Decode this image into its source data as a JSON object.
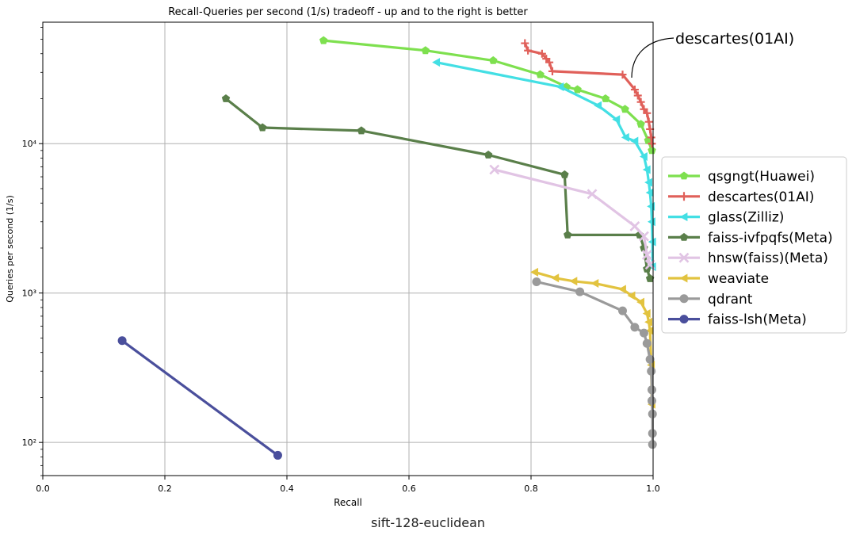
{
  "chart_data": {
    "type": "line",
    "title": "Recall-Queries per second (1/s) tradeoff - up and to the right is better",
    "xlabel": "Recall",
    "ylabel": "Queries per second (1/s)",
    "xlim": [
      0.0,
      1.0
    ],
    "ylim": [
      60,
      65000
    ],
    "yscale": "log",
    "xticks": [
      "0.0",
      "0.2",
      "0.4",
      "0.6",
      "0.8",
      "1.0"
    ],
    "yticks": [
      "10²",
      "10³",
      "10⁴"
    ],
    "grid": true,
    "legend_position": "right",
    "annotation": "descartes(01AI)",
    "series": [
      {
        "name": "qsgngt(Huawei)",
        "color": "#7ee04f",
        "marker": "pentagon",
        "x": [
          0.46,
          0.627,
          0.738,
          0.815,
          0.858,
          0.876,
          0.922,
          0.954,
          0.98,
          0.992,
          0.998
        ],
        "y": [
          49000,
          42000,
          36000,
          29000,
          24000,
          23000,
          20000,
          17000,
          13500,
          10500,
          9000
        ]
      },
      {
        "name": "descartes(01AI)",
        "color": "#e0605a",
        "marker": "plus",
        "x": [
          0.79,
          0.795,
          0.818,
          0.825,
          0.83,
          0.835,
          0.95,
          0.97,
          0.975,
          0.98,
          0.985,
          0.99,
          0.993,
          0.995,
          0.997,
          0.998
        ],
        "y": [
          47000,
          42000,
          40000,
          37000,
          35000,
          30500,
          29000,
          23000,
          21000,
          19000,
          17000,
          16000,
          14000,
          12500,
          11000,
          10000
        ]
      },
      {
        "name": "glass(Zilliz)",
        "color": "#43dfe4",
        "marker": "triangle-left",
        "x": [
          0.645,
          0.848,
          0.91,
          0.94,
          0.955,
          0.97,
          0.985,
          0.99,
          0.993,
          0.995,
          0.997,
          0.998,
          0.999,
          0.999
        ],
        "y": [
          35000,
          24000,
          18000,
          14500,
          11000,
          10400,
          8200,
          6700,
          5500,
          4700,
          3800,
          3000,
          2200,
          1500
        ]
      },
      {
        "name": "faiss-ivfpqfs(Meta)",
        "color": "#5a7f4a",
        "marker": "pentagon",
        "x": [
          0.3,
          0.36,
          0.522,
          0.73,
          0.855,
          0.86,
          0.978,
          0.985,
          0.99,
          0.995
        ],
        "y": [
          20000,
          12800,
          12200,
          8400,
          6200,
          2450,
          2450,
          2000,
          1450,
          1250
        ]
      },
      {
        "name": "hnsw(faiss)(Meta)",
        "color": "#e1c4e4",
        "marker": "x",
        "x": [
          0.74,
          0.9,
          0.97,
          0.985,
          0.99,
          0.995
        ],
        "y": [
          6700,
          4600,
          2800,
          2400,
          1800,
          1550
        ]
      },
      {
        "name": "weaviate",
        "color": "#e2c33f",
        "marker": "triangle-left",
        "x": [
          0.806,
          0.84,
          0.87,
          0.905,
          0.95,
          0.965,
          0.98,
          0.99,
          0.993,
          0.995,
          0.997,
          0.998
        ],
        "y": [
          1380,
          1260,
          1200,
          1160,
          1060,
          960,
          870,
          730,
          640,
          560,
          330,
          180
        ]
      },
      {
        "name": "qdrant",
        "color": "#9a9a9a",
        "marker": "circle",
        "x": [
          0.809,
          0.88,
          0.95,
          0.97,
          0.985,
          0.99,
          0.995,
          0.997,
          0.998,
          0.998,
          0.999,
          0.999,
          0.999
        ],
        "y": [
          1190,
          1020,
          760,
          590,
          540,
          460,
          360,
          300,
          225,
          190,
          155,
          115,
          97
        ]
      },
      {
        "name": "faiss-lsh(Meta)",
        "color": "#4a4f9c",
        "marker": "circle",
        "x": [
          0.13,
          0.385
        ],
        "y": [
          480,
          82
        ]
      }
    ]
  },
  "caption": "sift-128-euclidean"
}
